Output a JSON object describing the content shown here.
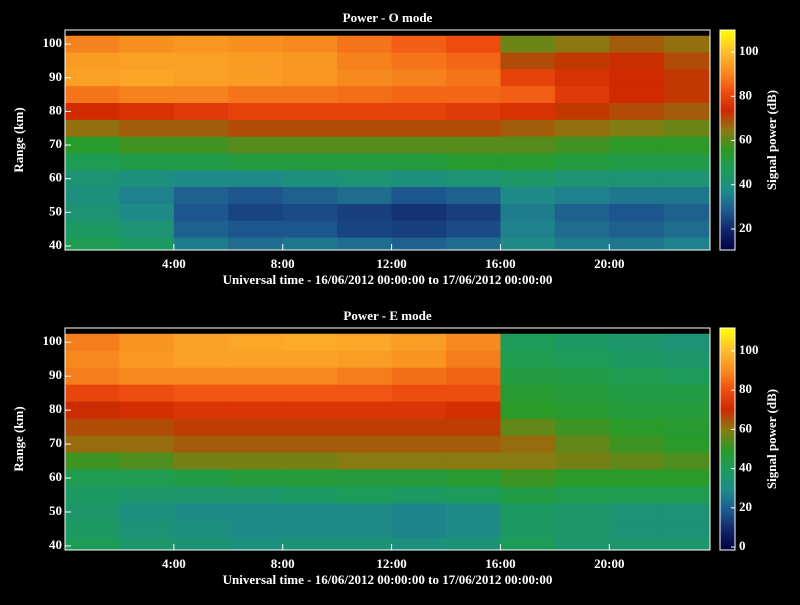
{
  "chart_data": [
    {
      "type": "heatmap",
      "title": "Power - O mode",
      "x_label": "Universal time - 16/06/2012 00:00:00 to 17/06/2012 00:00:00",
      "y_label": "Range (km)",
      "colorbar_label": "Signal power (dB)",
      "xlim": [
        0,
        23.7
      ],
      "xticks": [
        {
          "value": 4,
          "label": "4:00"
        },
        {
          "value": 8,
          "label": "8:00"
        },
        {
          "value": 12,
          "label": "12:00"
        },
        {
          "value": 16,
          "label": "16:00"
        },
        {
          "value": 20,
          "label": "20:00"
        }
      ],
      "ylim": [
        38.8,
        104.2
      ],
      "yticks": [
        40,
        50,
        60,
        70,
        80,
        90,
        100
      ],
      "zlim": [
        10.5,
        110
      ],
      "zticks": [
        20,
        40,
        60,
        80,
        100
      ],
      "colorscale": [
        "#000040",
        "#102468",
        "#1e5a90",
        "#1e8a8a",
        "#1c9c5a",
        "#2a9a28",
        "#8a7a10",
        "#d02800",
        "#f05010",
        "#f89020",
        "#ffc030",
        "#ffff00"
      ],
      "x": [
        1,
        3,
        5,
        7,
        9,
        11,
        13,
        15,
        17,
        19,
        21,
        23
      ],
      "y": [
        100,
        95,
        90,
        85,
        80,
        75,
        70,
        65,
        60,
        55,
        50,
        45,
        40
      ],
      "z": [
        [
          90,
          92,
          93,
          92,
          91,
          88,
          85,
          82,
          62,
          65,
          68,
          66
        ],
        [
          94,
          95,
          95,
          94,
          93,
          90,
          88,
          86,
          70,
          72,
          73,
          70
        ],
        [
          95,
          96,
          95,
          94,
          93,
          91,
          90,
          88,
          80,
          76,
          74,
          72
        ],
        [
          88,
          90,
          90,
          88,
          88,
          87,
          86,
          86,
          85,
          78,
          74,
          72
        ],
        [
          74,
          76,
          78,
          80,
          80,
          80,
          80,
          78,
          76,
          72,
          70,
          68
        ],
        [
          66,
          68,
          68,
          70,
          70,
          70,
          70,
          70,
          68,
          66,
          64,
          62
        ],
        [
          55,
          58,
          58,
          60,
          60,
          60,
          60,
          60,
          60,
          58,
          56,
          56
        ],
        [
          48,
          50,
          50,
          52,
          52,
          52,
          52,
          54,
          54,
          52,
          50,
          50
        ],
        [
          42,
          40,
          38,
          38,
          40,
          42,
          40,
          42,
          44,
          42,
          42,
          42
        ],
        [
          40,
          36,
          30,
          28,
          30,
          32,
          28,
          30,
          38,
          36,
          34,
          34
        ],
        [
          42,
          38,
          28,
          25,
          26,
          24,
          22,
          24,
          35,
          30,
          28,
          30
        ],
        [
          45,
          42,
          30,
          28,
          28,
          25,
          24,
          26,
          36,
          32,
          30,
          32
        ],
        [
          48,
          45,
          35,
          32,
          34,
          32,
          30,
          32,
          38,
          35,
          34,
          36
        ]
      ]
    },
    {
      "type": "heatmap",
      "title": "Power - E mode",
      "x_label": "Universal time - 16/06/2012 00:00:00 to 17/06/2012 00:00:00",
      "y_label": "Range (km)",
      "colorbar_label": "Signal power (dB)",
      "xlim": [
        0,
        23.7
      ],
      "xticks": [
        {
          "value": 4,
          "label": "4:00"
        },
        {
          "value": 8,
          "label": "8:00"
        },
        {
          "value": 12,
          "label": "12:00"
        },
        {
          "value": 16,
          "label": "16:00"
        },
        {
          "value": 20,
          "label": "20:00"
        }
      ],
      "ylim": [
        38.8,
        104.2
      ],
      "yticks": [
        40,
        50,
        60,
        70,
        80,
        90,
        100
      ],
      "zlim": [
        -1.5,
        111.7
      ],
      "zticks": [
        0,
        20,
        40,
        60,
        80,
        100
      ],
      "colorscale": [
        "#000040",
        "#102468",
        "#1e5a90",
        "#1e8a8a",
        "#1c9c5a",
        "#2a9a28",
        "#8a7a10",
        "#d02800",
        "#f05010",
        "#f89020",
        "#ffc030",
        "#ffff00"
      ],
      "x": [
        1,
        3,
        5,
        7,
        9,
        11,
        13,
        15,
        17,
        19,
        21,
        23
      ],
      "y": [
        100,
        95,
        90,
        85,
        80,
        75,
        70,
        65,
        60,
        55,
        50,
        45,
        40
      ],
      "z": [
        [
          88,
          92,
          95,
          96,
          97,
          96,
          94,
          90,
          40,
          38,
          36,
          34
        ],
        [
          90,
          93,
          95,
          95,
          95,
          94,
          92,
          88,
          42,
          40,
          38,
          36
        ],
        [
          88,
          90,
          90,
          90,
          90,
          88,
          86,
          84,
          45,
          44,
          42,
          40
        ],
        [
          78,
          80,
          82,
          82,
          82,
          82,
          80,
          80,
          48,
          46,
          44,
          44
        ],
        [
          70,
          72,
          74,
          74,
          74,
          74,
          74,
          72,
          50,
          48,
          46,
          46
        ],
        [
          66,
          66,
          68,
          68,
          68,
          68,
          68,
          68,
          56,
          52,
          50,
          48
        ],
        [
          62,
          62,
          64,
          64,
          64,
          64,
          64,
          64,
          62,
          56,
          52,
          50
        ],
        [
          52,
          54,
          58,
          58,
          58,
          60,
          60,
          60,
          60,
          58,
          56,
          54
        ],
        [
          42,
          42,
          44,
          46,
          46,
          46,
          46,
          48,
          52,
          50,
          50,
          50
        ],
        [
          38,
          36,
          36,
          36,
          38,
          40,
          38,
          40,
          44,
          42,
          42,
          42
        ],
        [
          36,
          32,
          30,
          30,
          30,
          30,
          28,
          30,
          38,
          36,
          34,
          34
        ],
        [
          38,
          34,
          32,
          30,
          30,
          30,
          28,
          30,
          38,
          36,
          34,
          34
        ],
        [
          40,
          36,
          34,
          32,
          34,
          34,
          32,
          34,
          40,
          36,
          36,
          36
        ]
      ]
    }
  ]
}
